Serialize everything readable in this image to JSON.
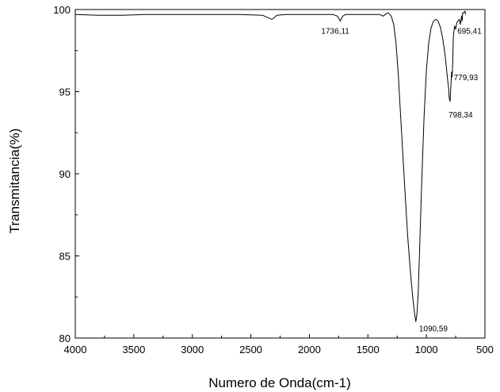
{
  "chart_data": {
    "type": "line",
    "title": "",
    "xlabel": "Numero de Onda(cm-1)",
    "ylabel": "Transmitancia(%)",
    "xlim": [
      4000,
      500
    ],
    "ylim": [
      80,
      100
    ],
    "x_reversed": true,
    "grid": false,
    "x_ticks": [
      "4000",
      "3500",
      "3000",
      "2500",
      "2000",
      "1500",
      "1000",
      "500"
    ],
    "y_ticks": [
      "80",
      "85",
      "90",
      "95",
      "100"
    ],
    "x_tick_values": [
      4000,
      3500,
      3000,
      2500,
      2000,
      1500,
      1000,
      500
    ],
    "y_tick_values": [
      80,
      85,
      90,
      95,
      100
    ],
    "series": [
      {
        "color": "#000000",
        "x": [
          4000,
          3800,
          3600,
          3400,
          3200,
          3000,
          2800,
          2600,
          2400,
          2350,
          2320,
          2300,
          2280,
          2200,
          2000,
          1800,
          1760,
          1736,
          1715,
          1690,
          1600,
          1500,
          1400,
          1370,
          1350,
          1330,
          1320,
          1300,
          1280,
          1260,
          1240,
          1220,
          1200,
          1180,
          1160,
          1140,
          1120,
          1100,
          1090,
          1080,
          1070,
          1060,
          1040,
          1020,
          1000,
          980,
          960,
          940,
          920,
          900,
          880,
          860,
          840,
          830,
          820,
          810,
          805,
          798,
          790,
          785,
          780,
          775,
          770,
          760,
          750,
          740,
          720,
          710,
          700,
          695,
          690,
          680,
          670,
          665
        ],
        "y": [
          99.7,
          99.65,
          99.65,
          99.7,
          99.7,
          99.7,
          99.7,
          99.7,
          99.65,
          99.5,
          99.4,
          99.5,
          99.65,
          99.7,
          99.7,
          99.7,
          99.6,
          99.3,
          99.6,
          99.7,
          99.7,
          99.7,
          99.7,
          99.6,
          99.7,
          99.8,
          99.75,
          99.6,
          99.1,
          98,
          96,
          93.5,
          91,
          88.5,
          86.2,
          84.3,
          82.7,
          81.4,
          81,
          81.5,
          82.8,
          85,
          89.5,
          93.5,
          96.3,
          98,
          98.9,
          99.3,
          99.4,
          99.3,
          98.9,
          98.2,
          97.2,
          96.5,
          95.8,
          95.2,
          94.6,
          94.4,
          95.5,
          96.2,
          95.9,
          96.8,
          98.3,
          99,
          98.8,
          99.2,
          99.4,
          99.1,
          99.6,
          99.3,
          99.8,
          99.8,
          99.9,
          99.7
        ]
      }
    ],
    "annotations": [
      {
        "text": "1736,11",
        "x": 1736,
        "y": 99.3
      },
      {
        "text": "1090,59",
        "x": 1090,
        "y": 81.0
      },
      {
        "text": "798,34",
        "x": 798,
        "y": 94.4
      },
      {
        "text": "779,93",
        "x": 780,
        "y": 95.9
      },
      {
        "text": "695,41",
        "x": 695,
        "y": 99.3
      }
    ]
  }
}
